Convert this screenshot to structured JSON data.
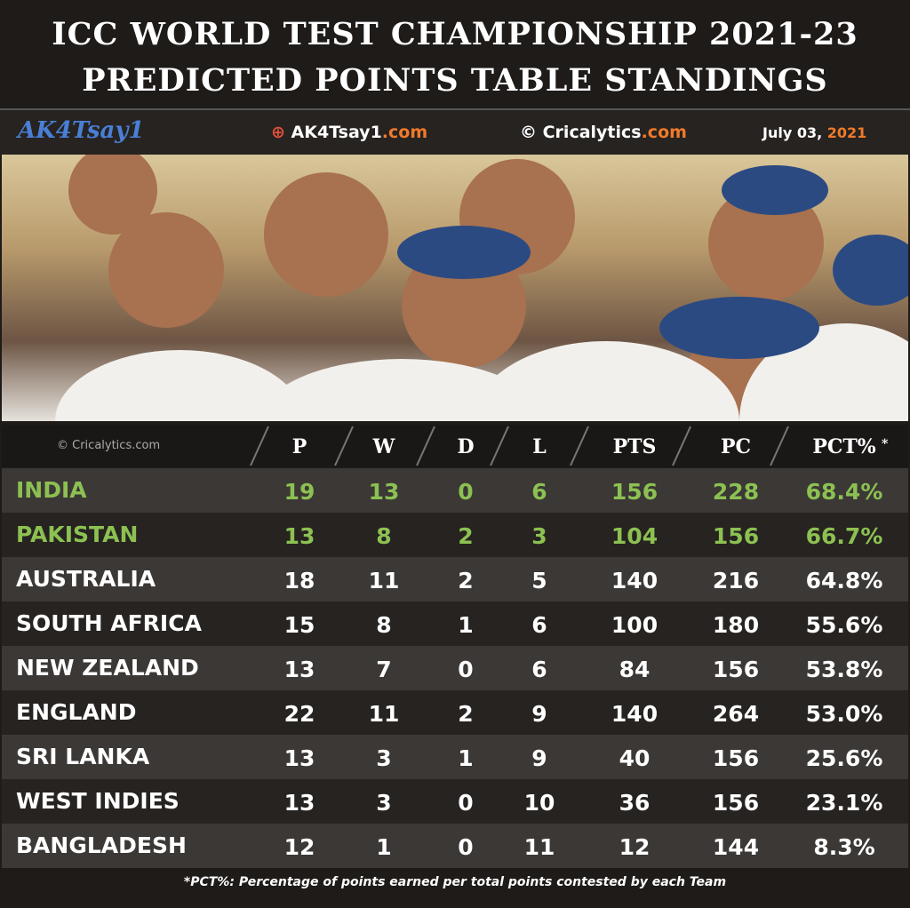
{
  "header": {
    "title_line1": "ICC WORLD TEST CHAMPIONSHIP 2021-23",
    "title_line2": "PREDICTED POINTS TABLE STANDINGS"
  },
  "brand": {
    "logo": "AK4Tsay1",
    "site_name": "AK4Tsay1",
    "site_tld": ".com",
    "credit_name": "© Cricalytics",
    "credit_tld": ".com",
    "date_day": "July 03,",
    "date_year": "2021"
  },
  "table": {
    "watermark": "© Cricalytics.com",
    "columns": [
      "P",
      "W",
      "D",
      "L",
      "PTS",
      "PC",
      "PCT%",
      "*"
    ],
    "rows": [
      [
        "INDIA",
        "19",
        "13",
        "0",
        "6",
        "156",
        "228",
        "68.4%"
      ],
      [
        "PAKISTAN",
        "13",
        "8",
        "2",
        "3",
        "104",
        "156",
        "66.7%"
      ],
      [
        "AUSTRALIA",
        "18",
        "11",
        "2",
        "5",
        "140",
        "216",
        "64.8%"
      ],
      [
        "SOUTH AFRICA",
        "15",
        "8",
        "1",
        "6",
        "100",
        "180",
        "55.6%"
      ],
      [
        "NEW ZEALAND",
        "13",
        "7",
        "0",
        "6",
        "84",
        "156",
        "53.8%"
      ],
      [
        "ENGLAND",
        "22",
        "11",
        "2",
        "9",
        "140",
        "264",
        "53.0%"
      ],
      [
        "SRI LANKA",
        "13",
        "3",
        "1",
        "9",
        "40",
        "156",
        "25.6%"
      ],
      [
        "WEST INDIES",
        "13",
        "3",
        "0",
        "10",
        "36",
        "156",
        "23.1%"
      ],
      [
        "BANGLADESH",
        "12",
        "1",
        "0",
        "11",
        "12",
        "144",
        "8.3%"
      ]
    ]
  },
  "footnote": "*PCT%: Percentage of points earned per total points contested by each Team"
}
